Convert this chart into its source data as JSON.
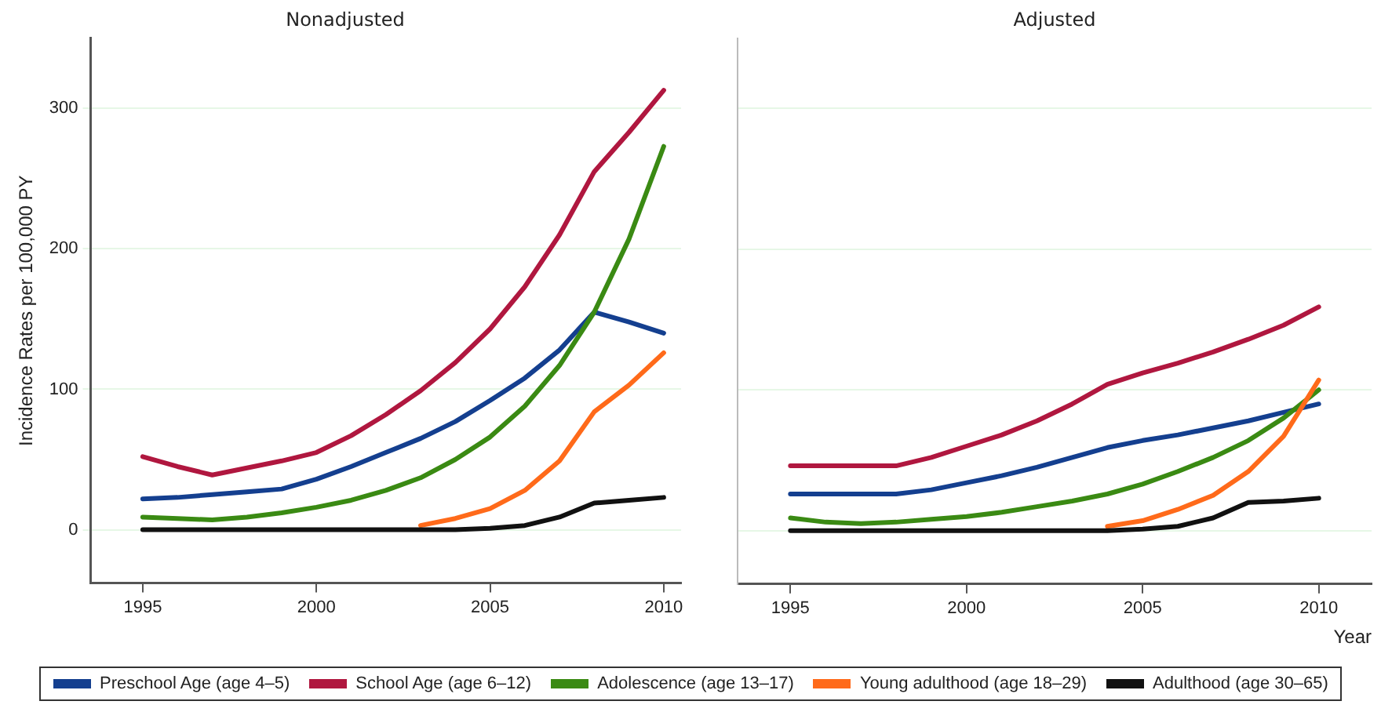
{
  "chart_data": [
    {
      "type": "line",
      "title": "Nonadjusted",
      "ylabel": "Incidence Rates per 100,000 PY",
      "x": [
        1995,
        1996,
        1997,
        1998,
        1999,
        2000,
        2001,
        2002,
        2003,
        2004,
        2005,
        2006,
        2007,
        2008,
        2009,
        2010
      ],
      "xlim": [
        1993.5,
        2010.5
      ],
      "xticks": [
        1995,
        2000,
        2005,
        2010
      ],
      "ylim": [
        -38,
        350
      ],
      "yticks": [
        0,
        100,
        200,
        300
      ],
      "grid": "y",
      "marker": "none",
      "legend": "bottom",
      "series": [
        {
          "name": "Preschool Age (age 4–5)",
          "color": "#143f8f",
          "values": [
            22,
            23,
            25,
            27,
            29,
            36,
            45,
            55,
            65,
            77,
            92,
            108,
            128,
            155,
            148,
            140
          ]
        },
        {
          "name": "School Age (age 6–12)",
          "color": "#b0173f",
          "values": [
            52,
            45,
            39,
            44,
            49,
            55,
            67,
            82,
            99,
            119,
            143,
            173,
            210,
            255,
            283,
            313
          ]
        },
        {
          "name": "Adolescence (age 13–17)",
          "color": "#3a8a13",
          "values": [
            9,
            8,
            7,
            9,
            12,
            16,
            21,
            28,
            37,
            50,
            66,
            88,
            117,
            155,
            207,
            273
          ]
        },
        {
          "name": "Young adulthood (age 18–29)",
          "color": "#ff6a1a",
          "values": [
            null,
            null,
            null,
            null,
            null,
            null,
            null,
            null,
            3,
            8,
            15,
            28,
            49,
            84,
            103,
            126
          ]
        },
        {
          "name": "Adulthood (age 30–65)",
          "color": "#111111",
          "values": [
            0,
            0,
            0,
            0,
            0,
            0,
            0,
            0,
            0,
            0,
            1,
            3,
            9,
            19,
            21,
            23
          ]
        }
      ]
    },
    {
      "type": "line",
      "title": "Adjusted",
      "xlabel": "Year",
      "x": [
        1995,
        1996,
        1997,
        1998,
        1999,
        2000,
        2001,
        2002,
        2003,
        2004,
        2005,
        2006,
        2007,
        2008,
        2009,
        2010
      ],
      "xlim": [
        1993.5,
        2011.5
      ],
      "xticks": [
        1995,
        2000,
        2005,
        2010
      ],
      "ylim": [
        -38,
        350
      ],
      "yticks": [
        0,
        100,
        200,
        300
      ],
      "grid": "y",
      "marker": "none",
      "tick_labels": "x",
      "series": [
        {
          "color": "#143f8f",
          "values": [
            26,
            26,
            26,
            26,
            29,
            34,
            39,
            45,
            52,
            59,
            64,
            68,
            73,
            78,
            84,
            90
          ]
        },
        {
          "color": "#b0173f",
          "values": [
            46,
            46,
            46,
            46,
            52,
            60,
            68,
            78,
            90,
            104,
            112,
            119,
            127,
            136,
            146,
            159
          ]
        },
        {
          "color": "#3a8a13",
          "values": [
            9,
            6,
            5,
            6,
            8,
            10,
            13,
            17,
            21,
            26,
            33,
            42,
            52,
            64,
            80,
            100
          ]
        },
        {
          "color": "#ff6a1a",
          "values": [
            null,
            null,
            null,
            null,
            null,
            null,
            null,
            null,
            null,
            3,
            7,
            15,
            25,
            42,
            67,
            107
          ]
        },
        {
          "color": "#111111",
          "values": [
            0,
            0,
            0,
            0,
            0,
            0,
            0,
            0,
            0,
            0,
            1,
            3,
            9,
            20,
            21,
            23
          ]
        }
      ]
    }
  ]
}
